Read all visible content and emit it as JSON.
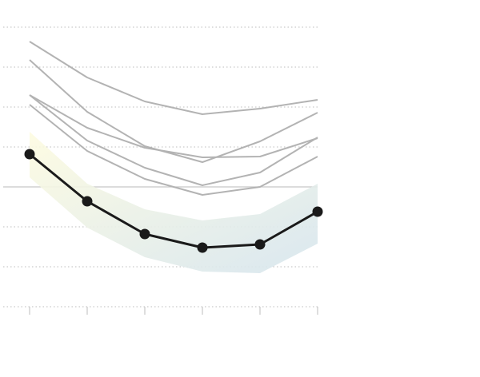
{
  "chart_data": {
    "type": "line",
    "categories": [
      null,
      null,
      null,
      null,
      null,
      null
    ],
    "ylim": [
      -3,
      4
    ],
    "yticks": [
      -3,
      -2,
      -1,
      0,
      1,
      2,
      3,
      4
    ],
    "grid": true,
    "zero_line": true,
    "band": {
      "upper": [
        1.38,
        0.08,
        -0.56,
        -0.84,
        -0.68,
        0.08
      ],
      "lower": [
        0.24,
        -1.02,
        -1.76,
        -2.12,
        -2.16,
        -1.42
      ],
      "colors": [
        "#fdfbe0",
        "#d6e5ee"
      ]
    },
    "series": [
      {
        "color": "#b3b3b3",
        "values": [
          3.64,
          2.74,
          2.14,
          1.82,
          1.96,
          2.18
        ]
      },
      {
        "color": "#b3b3b3",
        "values": [
          3.18,
          1.88,
          1.02,
          0.62,
          1.14,
          1.86
        ]
      },
      {
        "color": "#b3b3b3",
        "values": [
          2.3,
          1.48,
          0.98,
          0.74,
          0.76,
          1.22
        ]
      },
      {
        "color": "#b3b3b3",
        "values": [
          2.3,
          1.16,
          0.48,
          0.04,
          0.36,
          1.24
        ]
      },
      {
        "color": "#b3b3b3",
        "values": [
          2.06,
          0.9,
          0.2,
          -0.2,
          0,
          0.76
        ]
      },
      {
        "color": "#1a1a1a",
        "values": [
          0.82,
          -0.36,
          -1.18,
          -1.52,
          -1.44,
          -0.62
        ],
        "markers": true
      }
    ]
  }
}
